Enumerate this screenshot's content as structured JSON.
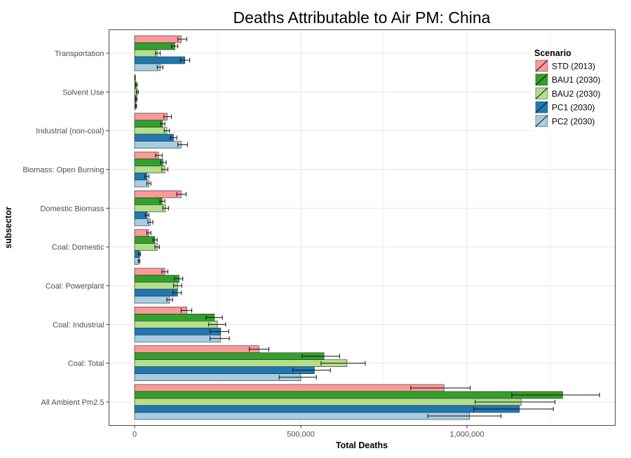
{
  "chart_data": {
    "type": "bar",
    "orientation": "horizontal",
    "title": "Deaths Attributable to Air PM: China",
    "xlabel": "Total Deaths",
    "ylabel": "subsector",
    "legend_title": "Scenario",
    "legend_position": "top-right-inside",
    "grid": true,
    "xlim": [
      0,
      1450000
    ],
    "xticks": [
      {
        "value": 0,
        "label": "0"
      },
      {
        "value": 500000,
        "label": "500,000"
      },
      {
        "value": 1000000,
        "label": "1,000,000"
      }
    ],
    "categories": [
      "Transportation",
      "Solvent Use",
      "Industrial (non-coal)",
      "Biomass: Open Burning",
      "Domestic Biomass",
      "Coal: Domestic",
      "Coal: Powerplant",
      "Coal: Industrial",
      "Coal: Total",
      "All Ambient Pm2.5"
    ],
    "series": [
      {
        "name": "STD (2013)",
        "color": "#FB9A99",
        "values": [
          140000,
          1000,
          98000,
          72000,
          140000,
          42000,
          91000,
          157000,
          374000,
          931000
        ],
        "error_low": [
          130000,
          500,
          88000,
          63000,
          127000,
          37000,
          82000,
          140000,
          345000,
          831000
        ],
        "error_high": [
          157000,
          2000,
          111000,
          83000,
          155000,
          49000,
          100000,
          172000,
          404000,
          1010000
        ]
      },
      {
        "name": "BAU1 (2030)",
        "color": "#33A02C",
        "values": [
          121000,
          5000,
          84000,
          85000,
          83000,
          61000,
          134000,
          240000,
          570000,
          1288000
        ],
        "error_low": [
          111000,
          3000,
          78000,
          78000,
          76000,
          55000,
          120000,
          215000,
          504000,
          1135000
        ],
        "error_high": [
          130000,
          8000,
          91000,
          95000,
          91000,
          68000,
          145000,
          264000,
          617000,
          1399000
        ]
      },
      {
        "name": "BAU2 (2030)",
        "color": "#B2DF8A",
        "values": [
          68000,
          8000,
          97000,
          91000,
          93000,
          68000,
          130000,
          249000,
          639000,
          1163000
        ],
        "error_low": [
          63000,
          5000,
          89000,
          82000,
          85000,
          61000,
          117000,
          223000,
          561000,
          1025000
        ],
        "error_high": [
          77000,
          11000,
          105000,
          100000,
          102000,
          75000,
          142000,
          274000,
          694000,
          1265000
        ]
      },
      {
        "name": "PC1 (2030)",
        "color": "#1F78B4",
        "values": [
          151000,
          5000,
          117000,
          37000,
          38000,
          15000,
          129000,
          259000,
          541000,
          1158000
        ],
        "error_low": [
          138000,
          3000,
          108000,
          31000,
          32000,
          12000,
          115000,
          227000,
          476000,
          1020000
        ],
        "error_high": [
          166000,
          7000,
          127000,
          43000,
          43000,
          18000,
          141000,
          283000,
          589000,
          1260000
        ]
      },
      {
        "name": "PC2 (2030)",
        "color": "#A6CEE3",
        "values": [
          77000,
          4000,
          140000,
          43000,
          47000,
          13000,
          105000,
          259000,
          500000,
          1008000
        ],
        "error_low": [
          68000,
          2500,
          130000,
          37000,
          40000,
          11000,
          97000,
          227000,
          435000,
          882000
        ],
        "error_high": [
          85000,
          6000,
          159000,
          49000,
          55000,
          16000,
          114000,
          285000,
          547000,
          1103000
        ]
      }
    ]
  }
}
